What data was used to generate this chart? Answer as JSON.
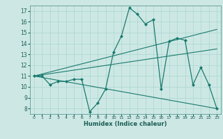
{
  "xlabel": "Humidex (Indice chaleur)",
  "background_color": "#cde8e4",
  "grid_color": "#b0d8d4",
  "line_color": "#1a7a6e",
  "xlim": [
    -0.5,
    23.5
  ],
  "ylim": [
    7.5,
    17.5
  ],
  "yticks": [
    8,
    9,
    10,
    11,
    12,
    13,
    14,
    15,
    16,
    17
  ],
  "xticks": [
    0,
    1,
    2,
    3,
    4,
    5,
    6,
    7,
    8,
    9,
    10,
    11,
    12,
    13,
    14,
    15,
    16,
    17,
    18,
    19,
    20,
    21,
    22,
    23
  ],
  "series": [
    {
      "x": [
        0,
        1,
        2,
        3,
        4,
        5,
        6,
        7,
        8,
        9,
        10,
        11,
        12,
        13,
        14,
        15,
        16,
        17,
        18,
        19,
        20,
        21,
        22,
        23
      ],
      "y": [
        11,
        11,
        10.2,
        10.5,
        10.5,
        10.7,
        10.7,
        7.7,
        8.5,
        9.8,
        13.2,
        14.7,
        17.3,
        16.7,
        15.8,
        16.2,
        9.8,
        14.2,
        14.5,
        14.3,
        10.2,
        11.8,
        10.2,
        8.0
      ]
    },
    {
      "x": [
        0,
        23
      ],
      "y": [
        11,
        15.3
      ]
    },
    {
      "x": [
        0,
        23
      ],
      "y": [
        11,
        13.5
      ]
    },
    {
      "x": [
        0,
        23
      ],
      "y": [
        11,
        8.0
      ]
    }
  ]
}
